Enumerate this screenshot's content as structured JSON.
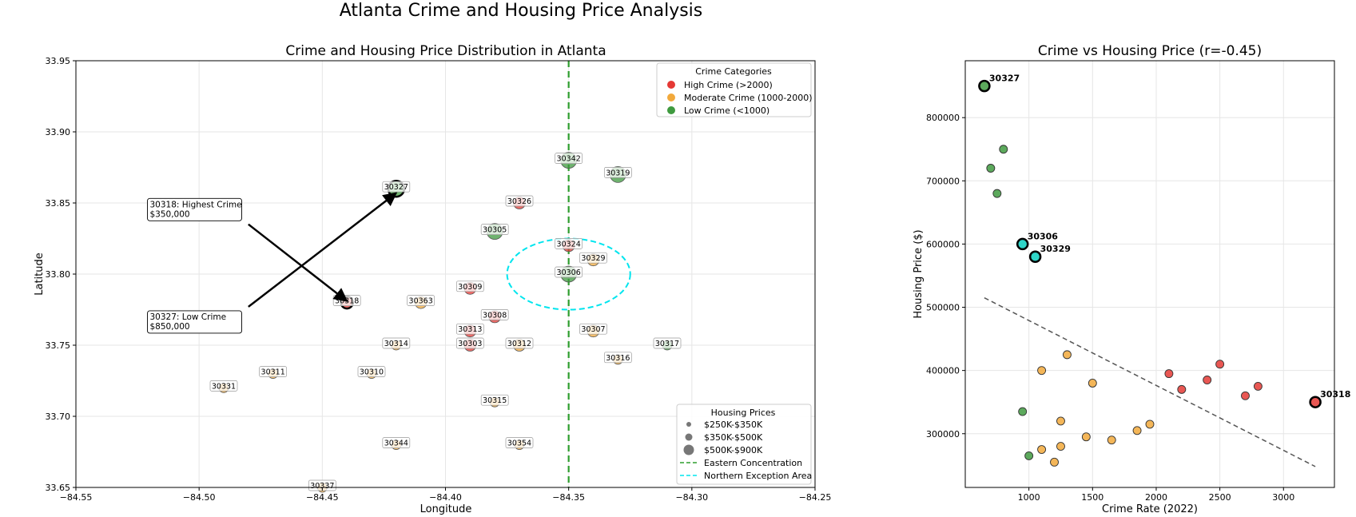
{
  "figure_title": "Atlanta Crime and Housing Price Analysis",
  "colors": {
    "high": "#e53935",
    "moderate": "#f2a93b",
    "low": "#3f9a3f",
    "highlight": "#2fd5c8",
    "eastern_line": "#2e9e2e",
    "northern_ellipse": "#00e5ee",
    "trend": "#555555"
  },
  "chart_data": [
    {
      "type": "scatter",
      "title": "Crime and Housing Price Distribution in Atlanta",
      "xlabel": "Longitude",
      "ylabel": "Latitude",
      "xlim": [
        -84.55,
        -84.25
      ],
      "ylim": [
        33.65,
        33.95
      ],
      "xticks": [
        -84.55,
        -84.5,
        -84.45,
        -84.4,
        -84.35,
        -84.3,
        -84.25
      ],
      "xtick_labels": [
        "−84.55",
        "−84.50",
        "−84.45",
        "−84.40",
        "−84.35",
        "−84.30",
        "−84.25"
      ],
      "yticks": [
        33.65,
        33.7,
        33.75,
        33.8,
        33.85,
        33.9,
        33.95
      ],
      "ytick_labels": [
        "33.65",
        "33.70",
        "33.75",
        "33.80",
        "33.85",
        "33.90",
        "33.95"
      ],
      "grid": true,
      "points": [
        {
          "zip": "30342",
          "x": -84.35,
          "y": 33.88,
          "cat": "low",
          "size": "large"
        },
        {
          "zip": "30319",
          "x": -84.33,
          "y": 33.87,
          "cat": "low",
          "size": "large"
        },
        {
          "zip": "30327",
          "x": -84.42,
          "y": 33.86,
          "cat": "low",
          "size": "large",
          "bold": true
        },
        {
          "zip": "30326",
          "x": -84.37,
          "y": 33.85,
          "cat": "high",
          "size": "medium"
        },
        {
          "zip": "30305",
          "x": -84.38,
          "y": 33.83,
          "cat": "low",
          "size": "large"
        },
        {
          "zip": "30324",
          "x": -84.35,
          "y": 33.82,
          "cat": "high",
          "size": "medium"
        },
        {
          "zip": "30329",
          "x": -84.34,
          "y": 33.81,
          "cat": "moderate",
          "size": "medium"
        },
        {
          "zip": "30306",
          "x": -84.35,
          "y": 33.8,
          "cat": "low",
          "size": "large"
        },
        {
          "zip": "30309",
          "x": -84.39,
          "y": 33.79,
          "cat": "high",
          "size": "medium"
        },
        {
          "zip": "30318",
          "x": -84.44,
          "y": 33.78,
          "cat": "high",
          "size": "medium",
          "bold": true
        },
        {
          "zip": "30363",
          "x": -84.41,
          "y": 33.78,
          "cat": "moderate",
          "size": "medium"
        },
        {
          "zip": "30308",
          "x": -84.38,
          "y": 33.77,
          "cat": "high",
          "size": "medium"
        },
        {
          "zip": "30313",
          "x": -84.39,
          "y": 33.76,
          "cat": "high",
          "size": "medium"
        },
        {
          "zip": "30307",
          "x": -84.34,
          "y": 33.76,
          "cat": "moderate",
          "size": "medium"
        },
        {
          "zip": "30314",
          "x": -84.42,
          "y": 33.75,
          "cat": "moderate",
          "size": "small"
        },
        {
          "zip": "30303",
          "x": -84.39,
          "y": 33.75,
          "cat": "high",
          "size": "medium"
        },
        {
          "zip": "30312",
          "x": -84.37,
          "y": 33.75,
          "cat": "moderate",
          "size": "medium"
        },
        {
          "zip": "30317",
          "x": -84.31,
          "y": 33.75,
          "cat": "low",
          "size": "small"
        },
        {
          "zip": "30316",
          "x": -84.33,
          "y": 33.74,
          "cat": "moderate",
          "size": "small"
        },
        {
          "zip": "30311",
          "x": -84.47,
          "y": 33.73,
          "cat": "moderate",
          "size": "small"
        },
        {
          "zip": "30310",
          "x": -84.43,
          "y": 33.73,
          "cat": "moderate",
          "size": "small"
        },
        {
          "zip": "30331",
          "x": -84.49,
          "y": 33.72,
          "cat": "moderate",
          "size": "small"
        },
        {
          "zip": "30315",
          "x": -84.38,
          "y": 33.71,
          "cat": "moderate",
          "size": "small"
        },
        {
          "zip": "30344",
          "x": -84.42,
          "y": 33.68,
          "cat": "moderate",
          "size": "small"
        },
        {
          "zip": "30354",
          "x": -84.37,
          "y": 33.68,
          "cat": "moderate",
          "size": "small"
        },
        {
          "zip": "30337",
          "x": -84.45,
          "y": 33.65,
          "cat": "moderate",
          "size": "small"
        }
      ],
      "annotations": [
        {
          "text": "30318: Highest Crime\n$350,000",
          "text_x": -84.52,
          "text_y": 33.847,
          "arrow_from": [
            -84.48,
            33.835
          ],
          "arrow_to": [
            -84.44,
            33.781
          ]
        },
        {
          "text": "30327: Low Crime\n$850,000",
          "text_x": -84.52,
          "text_y": 33.768,
          "arrow_from": [
            -84.48,
            33.777
          ],
          "arrow_to": [
            -84.42,
            33.857
          ]
        }
      ],
      "eastern_line_x": -84.35,
      "northern_ellipse": {
        "cx": -84.35,
        "cy": 33.8,
        "rx": 0.025,
        "ry": 0.025
      },
      "legend_categories": {
        "title": "Crime Categories",
        "position": "top-right",
        "items": [
          {
            "label": "High Crime (>2000)",
            "cat": "high"
          },
          {
            "label": "Moderate Crime (1000-2000)",
            "cat": "moderate"
          },
          {
            "label": "Low Crime (<1000)",
            "cat": "low"
          }
        ]
      },
      "legend_prices": {
        "title": "Housing Prices",
        "position": "bottom-right",
        "items": [
          {
            "label": "$250K-$350K",
            "marker": "small"
          },
          {
            "label": "$350K-$500K",
            "marker": "medium"
          },
          {
            "label": "$500K-$900K",
            "marker": "large"
          },
          {
            "label": "Eastern Concentration",
            "marker": "green-dashed"
          },
          {
            "label": "Northern Exception Area",
            "marker": "cyan-dashed"
          }
        ]
      }
    },
    {
      "type": "scatter",
      "title": "Crime vs Housing Price (r=-0.45)",
      "xlabel": "Crime Rate (2022)",
      "ylabel": "Housing Price ($)",
      "xlim": [
        500,
        3400
      ],
      "ylim": [
        215000,
        890000
      ],
      "xticks": [
        1000,
        1500,
        2000,
        2500,
        3000
      ],
      "xtick_labels": [
        "1000",
        "1500",
        "2000",
        "2500",
        "3000"
      ],
      "yticks": [
        300000,
        400000,
        500000,
        600000,
        700000,
        800000
      ],
      "ytick_labels": [
        "300000",
        "400000",
        "500000",
        "600000",
        "700000",
        "800000"
      ],
      "grid": true,
      "points": [
        {
          "x": 650,
          "y": 850000,
          "cat": "low",
          "label": "30327",
          "style": "bold"
        },
        {
          "x": 800,
          "y": 750000,
          "cat": "low"
        },
        {
          "x": 700,
          "y": 720000,
          "cat": "low"
        },
        {
          "x": 750,
          "y": 680000,
          "cat": "low"
        },
        {
          "x": 950,
          "y": 600000,
          "cat": "highlight",
          "label": "30306",
          "style": "highlight"
        },
        {
          "x": 1050,
          "y": 580000,
          "cat": "highlight",
          "label": "30329",
          "style": "highlight"
        },
        {
          "x": 1300,
          "y": 425000,
          "cat": "moderate"
        },
        {
          "x": 1100,
          "y": 400000,
          "cat": "moderate"
        },
        {
          "x": 1500,
          "y": 380000,
          "cat": "moderate"
        },
        {
          "x": 950,
          "y": 335000,
          "cat": "low"
        },
        {
          "x": 1250,
          "y": 320000,
          "cat": "moderate"
        },
        {
          "x": 1950,
          "y": 315000,
          "cat": "moderate"
        },
        {
          "x": 1850,
          "y": 305000,
          "cat": "moderate"
        },
        {
          "x": 1450,
          "y": 295000,
          "cat": "moderate"
        },
        {
          "x": 1650,
          "y": 290000,
          "cat": "moderate"
        },
        {
          "x": 1250,
          "y": 280000,
          "cat": "moderate"
        },
        {
          "x": 1100,
          "y": 275000,
          "cat": "moderate"
        },
        {
          "x": 1000,
          "y": 265000,
          "cat": "low"
        },
        {
          "x": 1200,
          "y": 255000,
          "cat": "moderate"
        },
        {
          "x": 2500,
          "y": 410000,
          "cat": "high"
        },
        {
          "x": 2100,
          "y": 395000,
          "cat": "high"
        },
        {
          "x": 2400,
          "y": 385000,
          "cat": "high"
        },
        {
          "x": 2800,
          "y": 375000,
          "cat": "high"
        },
        {
          "x": 2200,
          "y": 370000,
          "cat": "high"
        },
        {
          "x": 2700,
          "y": 360000,
          "cat": "high"
        },
        {
          "x": 3250,
          "y": 350000,
          "cat": "high",
          "label": "30318",
          "style": "bold"
        }
      ],
      "trend_line": {
        "x": [
          650,
          3250
        ],
        "y": [
          515000,
          248000
        ]
      }
    }
  ]
}
